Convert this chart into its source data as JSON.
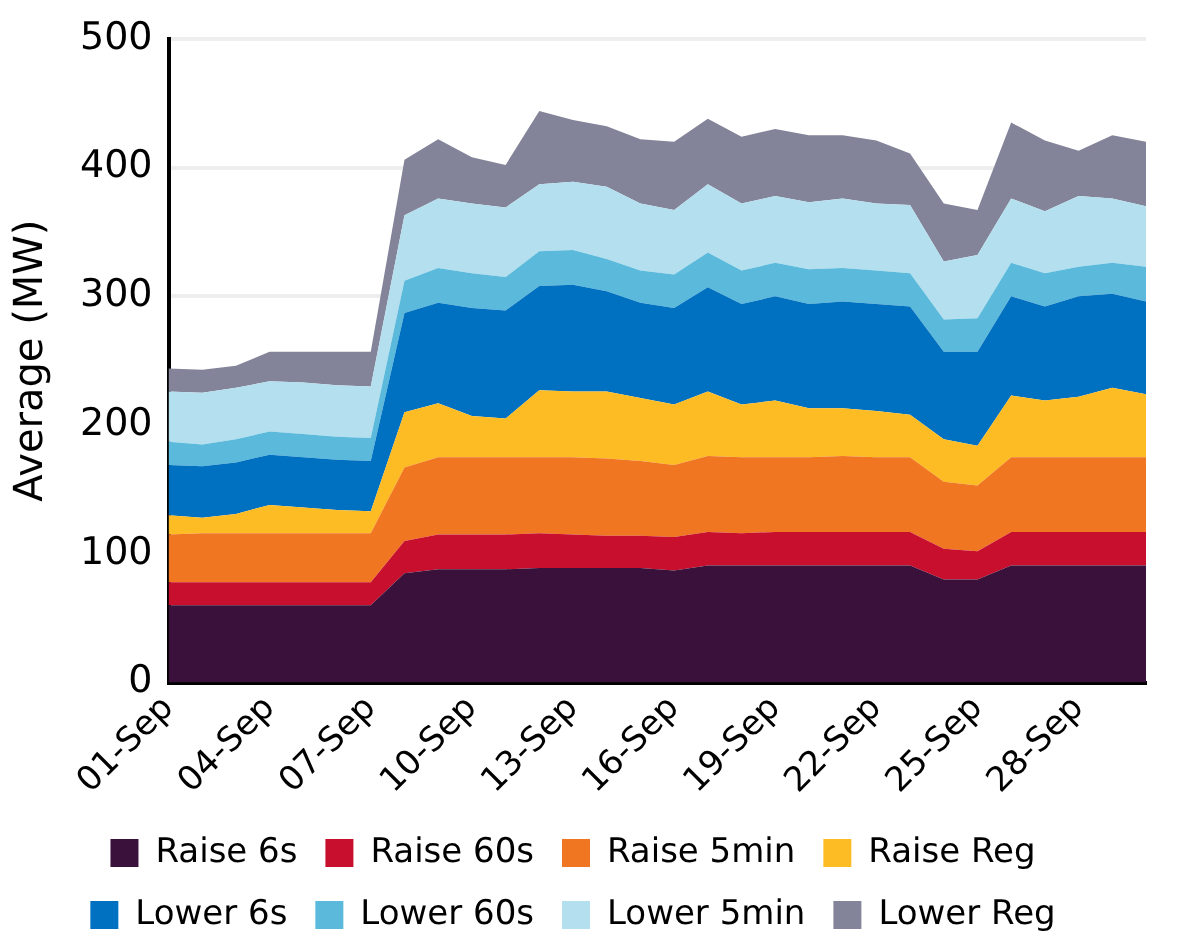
{
  "chart_data": {
    "type": "area",
    "stacked": true,
    "ylabel": "Average (MW)",
    "categories": [
      "01-Sep",
      null,
      null,
      "04-Sep",
      null,
      null,
      "07-Sep",
      null,
      null,
      "10-Sep",
      null,
      null,
      "13-Sep",
      null,
      null,
      "16-Sep",
      null,
      null,
      "19-Sep",
      null,
      null,
      "22-Sep",
      null,
      null,
      "25-Sep",
      null,
      null,
      "28-Sep",
      null,
      null
    ],
    "ylim": [
      0,
      500
    ],
    "yticks": [
      0,
      100,
      200,
      300,
      400,
      500
    ],
    "grid": "y",
    "legend": "bottom",
    "series": [
      {
        "name": "Raise 6s",
        "color": "#3a113a",
        "values": [
          60,
          60,
          60,
          60,
          60,
          60,
          60,
          85,
          88,
          88,
          88,
          89,
          89,
          89,
          89,
          87,
          91,
          91,
          91,
          91,
          91,
          91,
          91,
          80,
          80,
          91,
          91,
          91,
          91,
          91
        ]
      },
      {
        "name": "Raise 60s",
        "color": "#c8102e",
        "values": [
          18,
          18,
          18,
          18,
          18,
          18,
          18,
          25,
          27,
          27,
          27,
          27,
          26,
          25,
          25,
          26,
          26,
          25,
          26,
          26,
          26,
          26,
          26,
          24,
          22,
          26,
          26,
          26,
          26,
          26
        ]
      },
      {
        "name": "Raise 5min",
        "color": "#f07622",
        "values": [
          37,
          38,
          38,
          38,
          38,
          38,
          38,
          57,
          60,
          60,
          60,
          59,
          60,
          60,
          58,
          56,
          59,
          59,
          58,
          58,
          59,
          58,
          58,
          52,
          51,
          58,
          58,
          58,
          58,
          58
        ]
      },
      {
        "name": "Raise Reg",
        "color": "#fdbc24",
        "values": [
          15,
          12,
          15,
          22,
          20,
          18,
          17,
          43,
          42,
          32,
          30,
          52,
          51,
          52,
          49,
          47,
          50,
          41,
          44,
          38,
          37,
          36,
          33,
          33,
          31,
          48,
          44,
          47,
          54,
          49
        ]
      },
      {
        "name": "Lower 6s",
        "color": "#0070c0",
        "values": [
          39,
          40,
          40,
          39,
          39,
          39,
          39,
          77,
          78,
          84,
          84,
          81,
          83,
          78,
          74,
          75,
          81,
          78,
          81,
          81,
          83,
          83,
          84,
          68,
          73,
          77,
          73,
          78,
          73,
          72
        ]
      },
      {
        "name": "Lower 60s",
        "color": "#5bbadb",
        "values": [
          18,
          17,
          18,
          18,
          18,
          18,
          18,
          25,
          27,
          27,
          26,
          27,
          27,
          25,
          25,
          26,
          27,
          26,
          26,
          27,
          26,
          26,
          26,
          25,
          26,
          26,
          26,
          23,
          24,
          27
        ]
      },
      {
        "name": "Lower 5min",
        "color": "#b3dfee",
        "values": [
          39,
          40,
          40,
          39,
          40,
          40,
          40,
          51,
          54,
          54,
          54,
          52,
          53,
          56,
          52,
          50,
          53,
          52,
          52,
          52,
          54,
          52,
          53,
          45,
          49,
          50,
          48,
          55,
          50,
          47
        ]
      },
      {
        "name": "Lower Reg",
        "color": "#838399",
        "values": [
          18,
          18,
          17,
          23,
          24,
          26,
          27,
          43,
          46,
          36,
          33,
          57,
          48,
          47,
          50,
          53,
          51,
          52,
          52,
          52,
          49,
          49,
          40,
          45,
          35,
          59,
          55,
          35,
          49,
          50
        ]
      }
    ]
  }
}
